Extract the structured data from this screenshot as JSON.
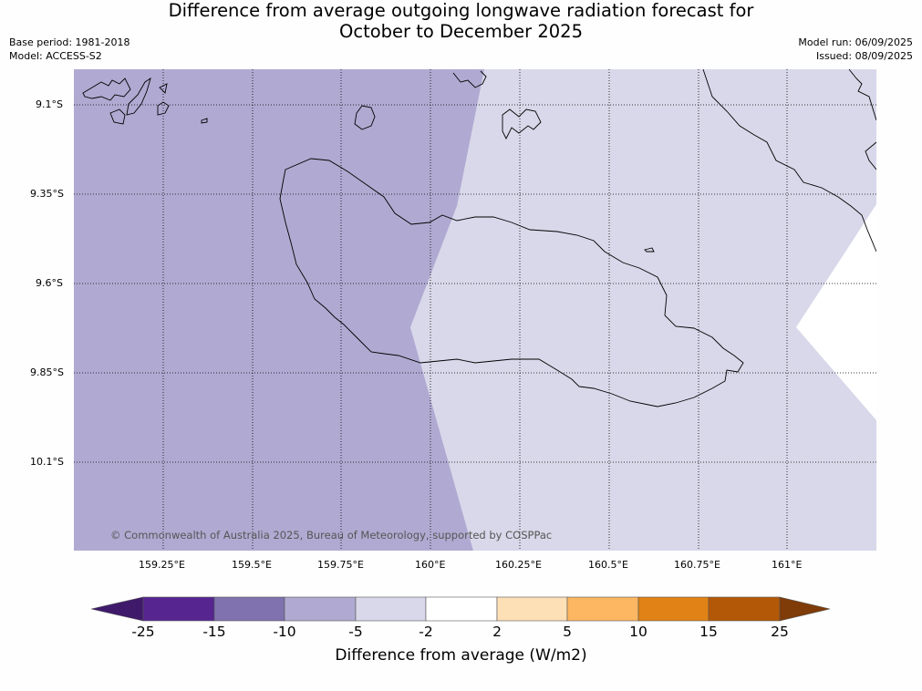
{
  "header": {
    "title_line1": "Difference from average outgoing longwave radiation forecast for",
    "title_line2": "October to December 2025",
    "base_period": "Base period: 1981-2018",
    "model": "Model: ACCESS-S2",
    "model_run": "Model run: 06/09/2025",
    "issued": "Issued: 08/09/2025"
  },
  "map": {
    "lat_labels": [
      "9.1°S",
      "9.35°S",
      "9.6°S",
      "9.85°S",
      "10.1°S"
    ],
    "lon_labels": [
      "159.25°E",
      "159.5°E",
      "159.75°E",
      "160°E",
      "160.25°E",
      "160.5°E",
      "160.75°E",
      "161°E"
    ],
    "copyright": "© Commonwealth of Australia 2025, Bureau of Meteorology, supported by COSPPac",
    "fill_colors": {
      "minus10_to_minus5": "#b0aad2",
      "minus5_to_minus2": "#d8d8ea",
      "minus2_to_2": "#ffffff"
    }
  },
  "colorbar": {
    "title": "Difference from average (W/m2)",
    "tick_labels": [
      "-25",
      "-15",
      "-10",
      "-5",
      "-2",
      "2",
      "5",
      "10",
      "15",
      "25"
    ],
    "colors": [
      "#3f1a6b",
      "#56258f",
      "#7f72ae",
      "#b0aad2",
      "#d8d8ea",
      "#ffffff",
      "#fee0b7",
      "#fdb662",
      "#e08215",
      "#b35806",
      "#7f3b08"
    ]
  }
}
